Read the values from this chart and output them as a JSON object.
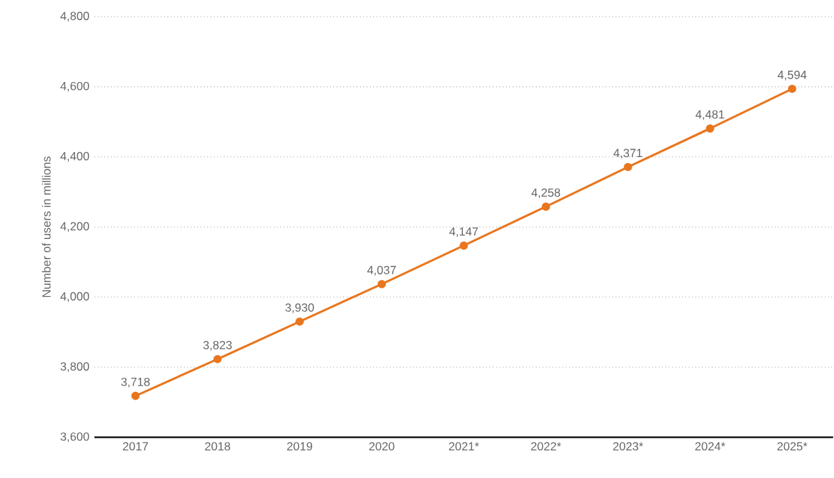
{
  "chart_data": {
    "type": "line",
    "ylabel": "Number of users in millions",
    "categories": [
      "2017",
      "2018",
      "2019",
      "2020",
      "2021*",
      "2022*",
      "2023*",
      "2024*",
      "2025*"
    ],
    "series": [
      {
        "color": "#e8761e",
        "values": [
          3718,
          3823,
          3930,
          4037,
          4147,
          4258,
          4371,
          4481,
          4594
        ],
        "value_labels": [
          "3,718",
          "3,823",
          "3,930",
          "4,037",
          "4,147",
          "4,258",
          "4,371",
          "4,481",
          "4,594"
        ]
      }
    ],
    "ylim": [
      3600,
      4800
    ],
    "yticks": [
      {
        "value": 3600,
        "label": "3,600"
      },
      {
        "value": 3800,
        "label": "3,800"
      },
      {
        "value": 4000,
        "label": "4,000"
      },
      {
        "value": 4200,
        "label": "4,200"
      },
      {
        "value": 4400,
        "label": "4,400"
      },
      {
        "value": 4600,
        "label": "4,600"
      },
      {
        "value": 4800,
        "label": "4,800"
      }
    ],
    "grid": "y",
    "marker": "circle",
    "line_style": "solid"
  }
}
